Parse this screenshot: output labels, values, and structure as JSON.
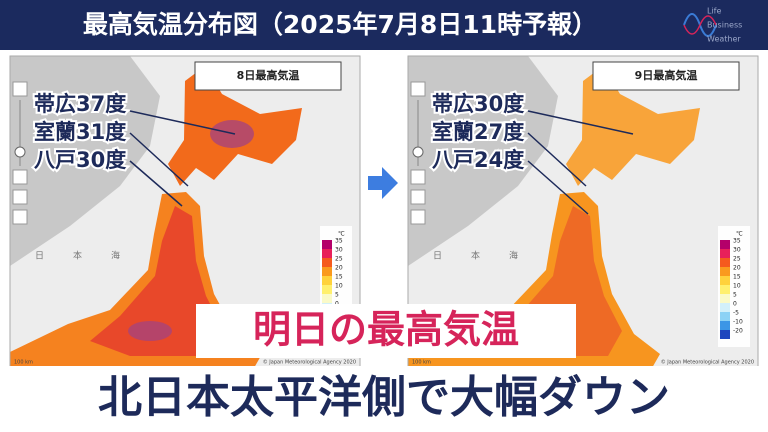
{
  "title": "最高気温分布図（2025年7月8日11時予報）",
  "logo": [
    "Life",
    "Business",
    "Weather"
  ],
  "panels": [
    {
      "label": "8日最高気温",
      "annotations": [
        "帯広37度",
        "室蘭31度",
        "八戸30度"
      ],
      "legend": {
        "unit": "℃",
        "labels": [
          "35",
          "30",
          "25",
          "20",
          "15",
          "10",
          "5",
          "0"
        ]
      }
    },
    {
      "label": "9日最高気温",
      "annotations": [
        "帯広30度",
        "室蘭27度",
        "八戸24度"
      ],
      "legend": {
        "unit": "℃",
        "labels": [
          "35",
          "30",
          "25",
          "20",
          "15",
          "10",
          "5",
          "0",
          "-5",
          "-10",
          "-20"
        ]
      }
    }
  ],
  "sea_label": [
    "日",
    "本",
    "海"
  ],
  "credit": "© Japan Meteorological Agency 2020",
  "scale": "100 km",
  "headline": "明日の最高気温",
  "subheadline": "北日本太平洋側で大幅ダウン"
}
